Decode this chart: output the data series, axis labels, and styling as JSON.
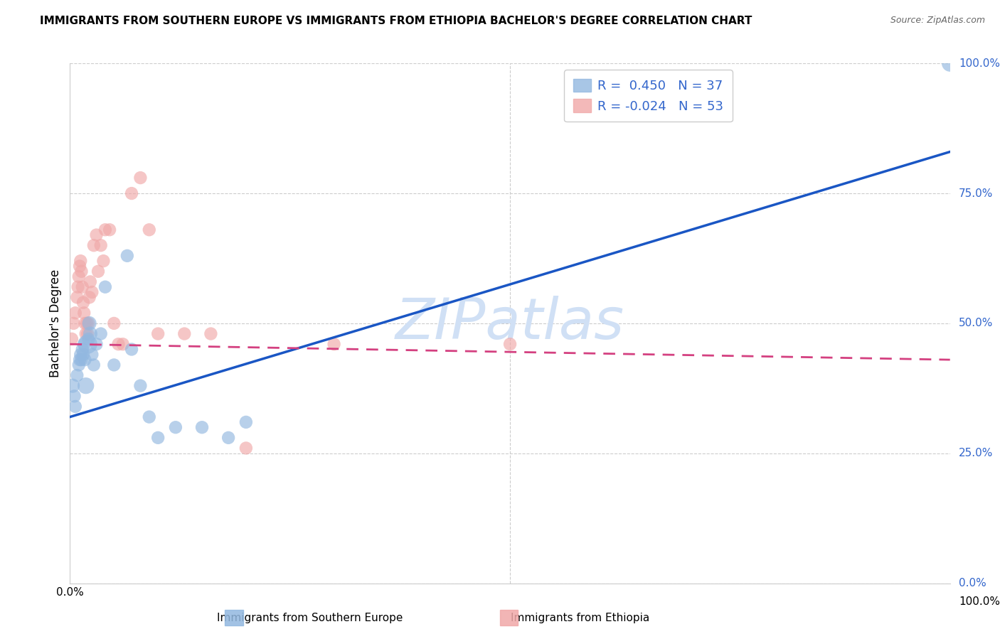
{
  "title": "IMMIGRANTS FROM SOUTHERN EUROPE VS IMMIGRANTS FROM ETHIOPIA BACHELOR'S DEGREE CORRELATION CHART",
  "source": "Source: ZipAtlas.com",
  "ylabel": "Bachelor's Degree",
  "legend_label1": "Immigrants from Southern Europe",
  "legend_label2": "Immigrants from Ethiopia",
  "R1": 0.45,
  "N1": 37,
  "R2": -0.024,
  "N2": 53,
  "color_blue": "#92b8e0",
  "color_pink": "#f0a8a8",
  "trend_blue": "#1a56c4",
  "trend_pink": "#d44080",
  "watermark_color": "#d0e0f5",
  "grid_color": "#cccccc",
  "right_axis_color": "#3366cc",
  "xlim": [
    0,
    100
  ],
  "ylim": [
    0,
    100
  ],
  "y_ticks": [
    0,
    25,
    50,
    75,
    100
  ],
  "blue_trend_x0": 0,
  "blue_trend_y0": 32,
  "blue_trend_x1": 100,
  "blue_trend_y1": 83,
  "pink_trend_x0": 0,
  "pink_trend_y0": 46,
  "pink_trend_x1": 100,
  "pink_trend_y1": 43,
  "blue_x": [
    0.3,
    0.5,
    0.6,
    0.8,
    1.0,
    1.1,
    1.2,
    1.3,
    1.4,
    1.5,
    1.6,
    1.7,
    1.8,
    2.0,
    2.1,
    2.2,
    2.3,
    2.5,
    2.7,
    3.0,
    3.5,
    4.0,
    5.0,
    6.5,
    7.0,
    8.0,
    9.0,
    10.0,
    12.0,
    15.0,
    18.0,
    20.0,
    100.0
  ],
  "blue_y": [
    38,
    36,
    34,
    40,
    42,
    43,
    44,
    43,
    45,
    44,
    46,
    43,
    38,
    46,
    47,
    50,
    48,
    44,
    42,
    46,
    48,
    57,
    42,
    63,
    45,
    38,
    32,
    28,
    30,
    30,
    28,
    31,
    100
  ],
  "blue_s": [
    60,
    50,
    50,
    50,
    50,
    50,
    50,
    50,
    50,
    50,
    50,
    50,
    80,
    110,
    50,
    60,
    60,
    50,
    50,
    50,
    50,
    50,
    50,
    50,
    50,
    50,
    50,
    50,
    50,
    50,
    50,
    50,
    80
  ],
  "pink_x": [
    0.2,
    0.4,
    0.6,
    0.8,
    0.9,
    1.0,
    1.1,
    1.2,
    1.3,
    1.4,
    1.5,
    1.6,
    1.7,
    1.8,
    1.9,
    2.0,
    2.1,
    2.2,
    2.3,
    2.5,
    2.7,
    3.0,
    3.2,
    3.5,
    3.8,
    4.0,
    4.5,
    5.0,
    5.5,
    6.0,
    7.0,
    8.0,
    9.0,
    10.0,
    13.0,
    16.0,
    20.0,
    30.0,
    50.0
  ],
  "pink_y": [
    47,
    50,
    52,
    55,
    57,
    59,
    61,
    62,
    60,
    57,
    54,
    52,
    50,
    48,
    50,
    48,
    50,
    55,
    58,
    56,
    65,
    67,
    60,
    65,
    62,
    68,
    68,
    50,
    46,
    46,
    75,
    78,
    68,
    48,
    48,
    48,
    26,
    46,
    46
  ],
  "pink_s": [
    50,
    50,
    50,
    50,
    50,
    50,
    50,
    50,
    50,
    50,
    50,
    50,
    50,
    50,
    50,
    50,
    50,
    50,
    50,
    50,
    50,
    50,
    50,
    50,
    50,
    50,
    50,
    50,
    50,
    50,
    50,
    50,
    50,
    50,
    50,
    50,
    50,
    50,
    50
  ]
}
